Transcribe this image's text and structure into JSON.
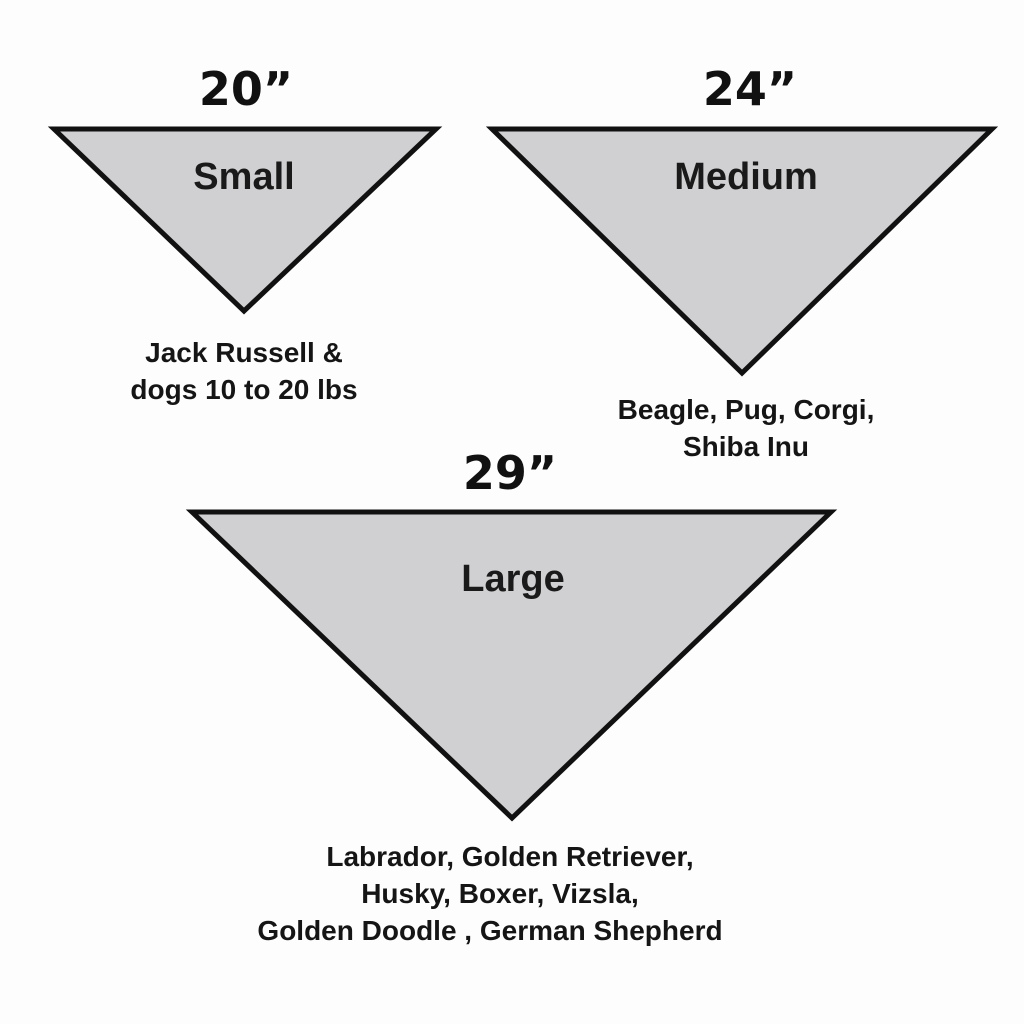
{
  "colors": {
    "fill": "#d0d0d2",
    "stroke": "#111111",
    "background": "#fdfdfd"
  },
  "bandanas": [
    {
      "size": "20”",
      "name": "Small",
      "description": [
        "Jack Russell &",
        "dogs 10 to 20 lbs"
      ]
    },
    {
      "size": "24”",
      "name": "Medium",
      "description": [
        "Beagle, Pug, Corgi,",
        "Shiba Inu"
      ]
    },
    {
      "size": "29”",
      "name": "Large",
      "description": [
        "Labrador, Golden Retriever,",
        "Husky, Boxer, Vizsla,",
        "Golden Doodle , German Shepherd"
      ]
    }
  ]
}
